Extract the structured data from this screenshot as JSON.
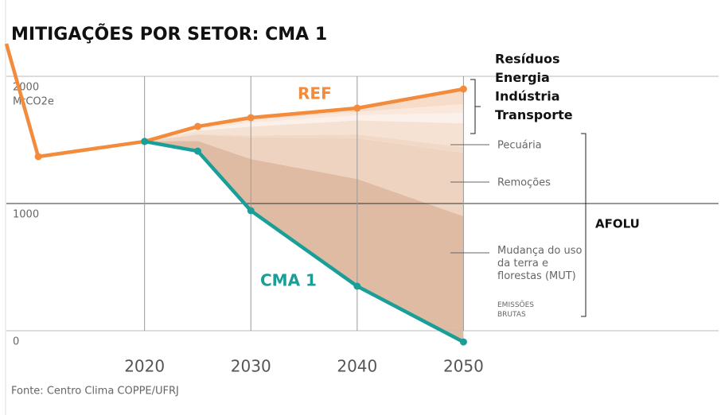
{
  "chart_data": {
    "type": "line",
    "title": "MITIGAÇÕES POR SETOR: CMA 1",
    "y_label": "MtCO2e",
    "source": "Fonte: Centro Clima COPPE/UFRJ",
    "x": [
      2007,
      2010,
      2020,
      2025,
      2030,
      2040,
      2050
    ],
    "xlim": [
      2007,
      2074
    ],
    "xticks": [
      2020,
      2030,
      2040,
      2050
    ],
    "ylim": [
      -100,
      2000
    ],
    "yticks": [
      0,
      1000,
      2000
    ],
    "grid": true,
    "series": [
      {
        "name": "REF",
        "color": "#f28b3c",
        "values": [
          2256,
          1369,
          1488,
          1606,
          1675,
          1750,
          1900
        ]
      },
      {
        "name": "CMA 1",
        "color": "#1a9e98",
        "values": [
          null,
          null,
          1488,
          1412,
          944,
          350,
          -88
        ]
      }
    ],
    "bands": [
      {
        "name": "Resíduos",
        "color": "#f7dcc9",
        "values": [
          null,
          null,
          0,
          12,
          20,
          30,
          119
        ]
      },
      {
        "name": "Energia",
        "color": "#fae8dc",
        "values": [
          null,
          null,
          0,
          10,
          20,
          26,
          69
        ]
      },
      {
        "name": "Indústria",
        "color": "#fcf1ea",
        "values": [
          null,
          null,
          0,
          12,
          30,
          40,
          81
        ]
      },
      {
        "name": "Transporte",
        "color": "#f6e2d3",
        "values": [
          null,
          null,
          0,
          25,
          70,
          110,
          187
        ]
      },
      {
        "name": "Pecuária",
        "color": "#f2d9c7",
        "values": [
          null,
          null,
          0,
          5,
          15,
          30,
          44
        ]
      },
      {
        "name": "Remoções",
        "color": "#eed4c0",
        "values": [
          null,
          null,
          0,
          50,
          170,
          320,
          500
        ]
      },
      {
        "name": "Mudança do uso da terra e florestas (MUT)",
        "color": "#dfbba3",
        "values": [
          null,
          null,
          0,
          80,
          406,
          844,
          988
        ]
      }
    ],
    "group_label": "AFOLU",
    "annotation": "EMISSÕES BRUTAS"
  }
}
